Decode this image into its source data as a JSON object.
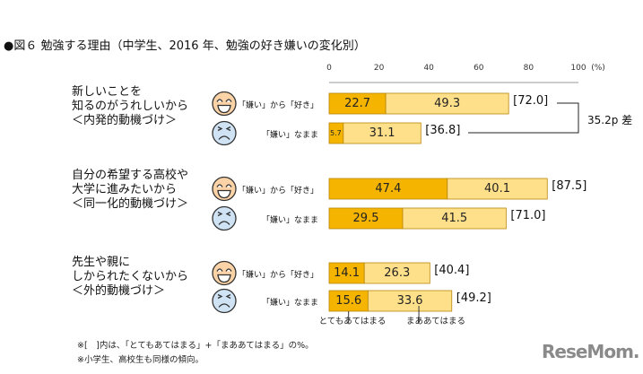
{
  "chart_data": {
    "type": "bar",
    "stacked": true,
    "orientation": "horizontal",
    "title": "●図６ 勉強する理由（中学生、2016 年、勉強の好き嫌いの変化別）",
    "unit_label": "(%)",
    "xlim": [
      0,
      100
    ],
    "ticks": [
      "0",
      "20",
      "40",
      "60",
      "80",
      "100"
    ],
    "colors": {
      "very": "#f5b400",
      "somewhat": "#ffe08a",
      "border": "#b8860b"
    },
    "legend": [
      "とてもあてはまる",
      "まああてはまる"
    ],
    "groups": [
      {
        "label": [
          "新しいことを",
          "知るのがうれしいから",
          "＜内発的動機づけ＞"
        ],
        "rows": [
          {
            "label": "「嫌い」から「好き」",
            "face": "smile-face-icon",
            "very": 22.7,
            "somewhat": 49.3,
            "total": "[72.0]"
          },
          {
            "label": "「嫌い」なまま",
            "face": "frown-face-icon",
            "very": 5.7,
            "somewhat": 31.1,
            "total": "[36.8]"
          }
        ],
        "diff": "35.2p 差"
      },
      {
        "label": [
          "自分の希望する高校や",
          "大学に進みたいから",
          "＜同一化的動機づけ＞"
        ],
        "rows": [
          {
            "label": "「嫌い」から「好き」",
            "face": "smile-face-icon",
            "very": 47.4,
            "somewhat": 40.1,
            "total": "[87.5]"
          },
          {
            "label": "「嫌い」なまま",
            "face": "frown-face-icon",
            "very": 29.5,
            "somewhat": 41.5,
            "total": "[71.0]"
          }
        ]
      },
      {
        "label": [
          "先生や親に",
          "しかられたくないから",
          "＜外的動機づけ＞"
        ],
        "rows": [
          {
            "label": "「嫌い」から「好き」",
            "face": "smile-face-icon",
            "very": 14.1,
            "somewhat": 26.3,
            "total": "[40.4]"
          },
          {
            "label": "「嫌い」なまま",
            "face": "frown-face-icon",
            "very": 15.6,
            "somewhat": 33.6,
            "total": "[49.2]"
          }
        ]
      }
    ],
    "notes": [
      "※[　]内は、「とてもあてはまる」+「まああてはまる」の%。",
      "※小学生、高校生も同様の傾向。"
    ]
  },
  "logo": "ReseMom."
}
